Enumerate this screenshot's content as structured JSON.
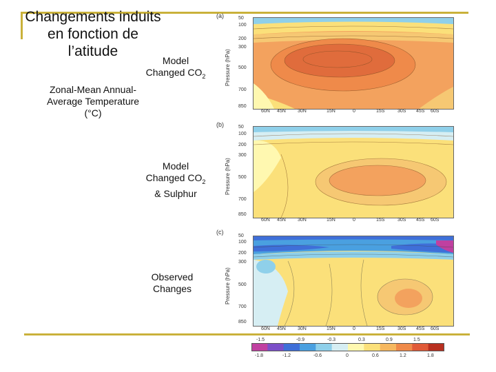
{
  "slide": {
    "title": "Changements induits en fonction de l’atitude",
    "side_label": "Zonal-Mean Annual-Average Temperature (°C)",
    "panel_a_caption": {
      "line1": "Model",
      "line2": "Changed CO",
      "sub": "2"
    },
    "panel_b_caption": {
      "line1": "Model",
      "line2": "Changed CO",
      "sub": "2",
      "line3": "& Sulphur"
    },
    "panel_c_caption": {
      "line1": "Observed",
      "line2": "Changes"
    }
  },
  "figure": {
    "panels": [
      {
        "letter": "(a)"
      },
      {
        "letter": "(b)"
      },
      {
        "letter": "(c)"
      }
    ],
    "y_axis_label": "Pressure (hPa)",
    "pressure_ticks": [
      "50",
      "100",
      "200",
      "300",
      "500",
      "700",
      "850"
    ],
    "lat_ticks": [
      "60N",
      "45N",
      "30N",
      "15N",
      "0",
      "15S",
      "30S",
      "45S",
      "60S"
    ],
    "colorbar_top": [
      "-1.5",
      "-0.9",
      "-0.3",
      "0.3",
      "0.9",
      "1.5"
    ],
    "colorbar_bottom": [
      "-1.8",
      "-1.2",
      "-0.6",
      "0",
      "0.6",
      "1.2",
      "1.8"
    ],
    "colorbar_colors": [
      "#c040a0",
      "#7b4fc8",
      "#3f6fd8",
      "#4aa0e0",
      "#8fd0ea",
      "#d6eef3",
      "#fff8b0",
      "#fbe07a",
      "#f6b860",
      "#ef8a4a",
      "#e05a38",
      "#b83020"
    ]
  }
}
